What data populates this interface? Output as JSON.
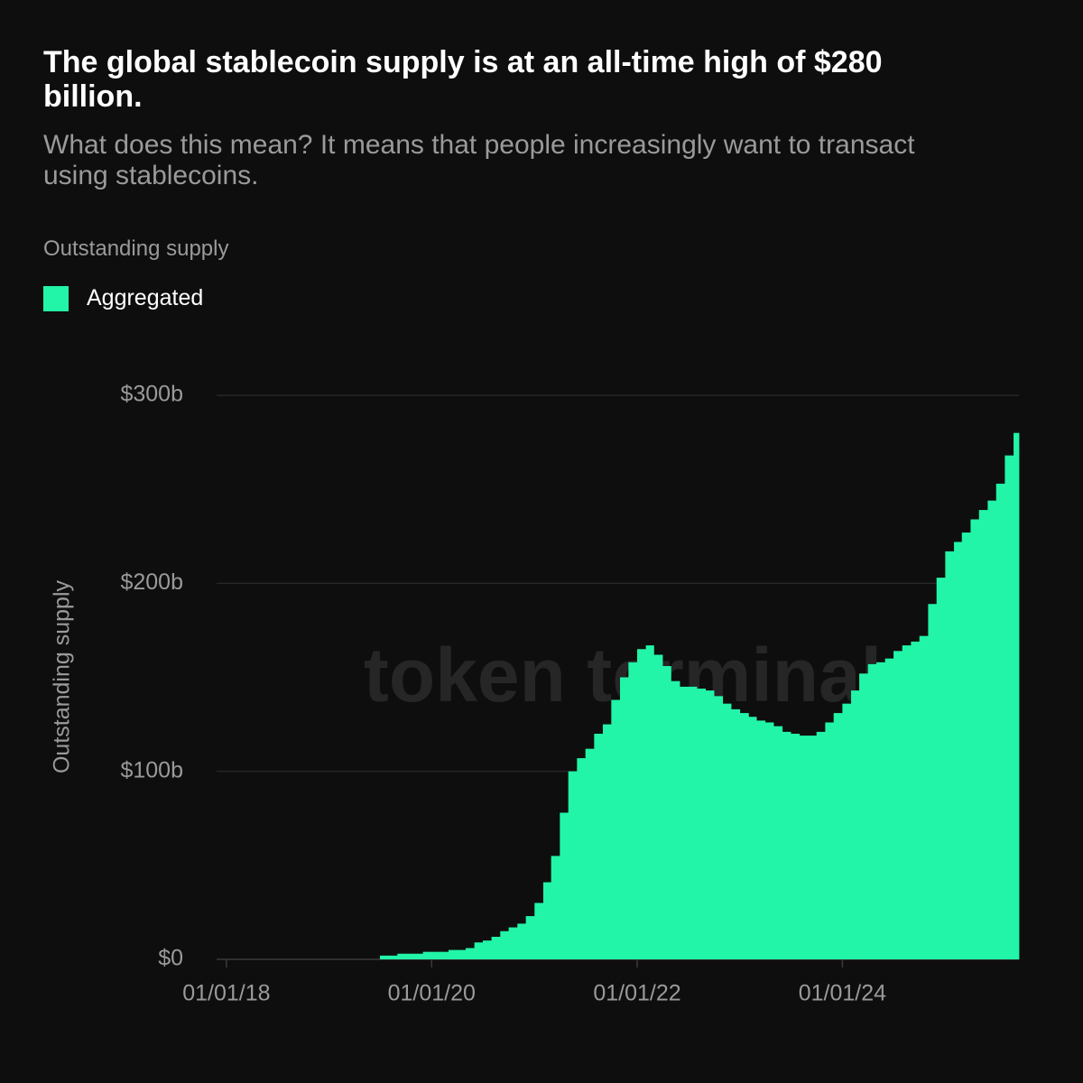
{
  "chart_data": {
    "type": "bar",
    "title": "The global stablecoin supply is at an all-time high of $280 billion.",
    "subtitle": "What does this mean? It means that people increasingly want to transact using stablecoins.",
    "chart_label": "Outstanding supply",
    "y_label": "Outstanding supply",
    "watermark": "token terminal",
    "legend": "top-left",
    "grid": true,
    "xlim": [
      "2017-11-27",
      "2025-09-20"
    ],
    "xticks": [
      {
        "value": "2018-01-01",
        "label": "01/01/18"
      },
      {
        "value": "2020-01-01",
        "label": "01/01/20"
      },
      {
        "value": "2022-01-01",
        "label": "01/01/22"
      },
      {
        "value": "2024-01-01",
        "label": "01/01/24"
      }
    ],
    "ylim": [
      0,
      300
    ],
    "yticks": [
      {
        "value": 0,
        "label": "$0"
      },
      {
        "value": 100,
        "label": "$100b"
      },
      {
        "value": 200,
        "label": "$200b"
      },
      {
        "value": 300,
        "label": "$300b"
      }
    ],
    "x": [
      "2019-07-01",
      "2019-08-01",
      "2019-09-01",
      "2019-10-01",
      "2019-11-01",
      "2019-12-01",
      "2020-01-01",
      "2020-02-01",
      "2020-03-01",
      "2020-04-01",
      "2020-05-01",
      "2020-06-01",
      "2020-07-01",
      "2020-08-01",
      "2020-09-01",
      "2020-10-01",
      "2020-11-01",
      "2020-12-01",
      "2021-01-01",
      "2021-02-01",
      "2021-03-01",
      "2021-04-01",
      "2021-05-01",
      "2021-06-01",
      "2021-07-01",
      "2021-08-01",
      "2021-09-01",
      "2021-10-01",
      "2021-11-01",
      "2021-12-01",
      "2022-01-01",
      "2022-02-01",
      "2022-03-01",
      "2022-04-01",
      "2022-05-01",
      "2022-06-01",
      "2022-07-01",
      "2022-08-01",
      "2022-09-01",
      "2022-10-01",
      "2022-11-01",
      "2022-12-01",
      "2023-01-01",
      "2023-02-01",
      "2023-03-01",
      "2023-04-01",
      "2023-05-01",
      "2023-06-01",
      "2023-07-01",
      "2023-08-01",
      "2023-09-01",
      "2023-10-01",
      "2023-11-01",
      "2023-12-01",
      "2024-01-01",
      "2024-02-01",
      "2024-03-01",
      "2024-04-01",
      "2024-05-01",
      "2024-06-01",
      "2024-07-01",
      "2024-08-01",
      "2024-09-01",
      "2024-10-01",
      "2024-11-01",
      "2024-12-01",
      "2025-01-01",
      "2025-02-01",
      "2025-03-01",
      "2025-04-01",
      "2025-05-01",
      "2025-06-01",
      "2025-07-01",
      "2025-08-01",
      "2025-09-01"
    ],
    "series": [
      {
        "name": "Aggregated",
        "color": "#22f5a8",
        "values": [
          2,
          2,
          3,
          3,
          3,
          4,
          4,
          4,
          5,
          5,
          6,
          9,
          10,
          12,
          15,
          17,
          19,
          23,
          30,
          41,
          55,
          78,
          100,
          107,
          112,
          120,
          125,
          138,
          150,
          158,
          165,
          167,
          162,
          156,
          148,
          145,
          145,
          144,
          143,
          140,
          136,
          133,
          131,
          129,
          127,
          126,
          124,
          121,
          120,
          119,
          119,
          121,
          126,
          131,
          136,
          143,
          152,
          157,
          158,
          160,
          164,
          167,
          169,
          172,
          189,
          203,
          217,
          222,
          227,
          234,
          239,
          244,
          253,
          268,
          280
        ]
      }
    ]
  }
}
